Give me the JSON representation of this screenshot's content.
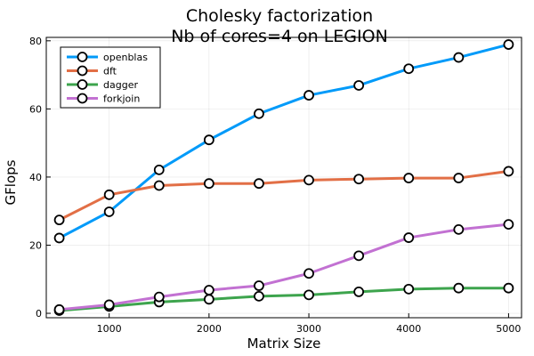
{
  "chart_data": {
    "type": "line",
    "title": [
      "Cholesky factorization",
      "Nb of cores=4 on LEGION"
    ],
    "xlabel": "Matrix Size",
    "ylabel": "GFlops",
    "x": [
      500,
      1000,
      1500,
      2000,
      2500,
      3000,
      3500,
      4000,
      4500,
      5000
    ],
    "xlim": [
      370,
      5130
    ],
    "ylim": [
      -1.3,
      81
    ],
    "xticks": [
      1000,
      2000,
      3000,
      4000,
      5000
    ],
    "yticks": [
      0,
      20,
      40,
      60,
      80
    ],
    "grid": true,
    "legend_position": "top-left",
    "series": [
      {
        "name": "openblas",
        "color": "#009af9",
        "values": [
          22.1,
          29.8,
          42.1,
          50.9,
          58.6,
          64.0,
          66.9,
          71.8,
          75.1,
          78.9
        ]
      },
      {
        "name": "dft",
        "color": "#e26f46",
        "values": [
          27.4,
          34.8,
          37.5,
          38.1,
          38.1,
          39.1,
          39.4,
          39.7,
          39.7,
          41.7
        ]
      },
      {
        "name": "dagger",
        "color": "#3da44d",
        "values": [
          0.8,
          2.0,
          3.3,
          4.1,
          5.0,
          5.4,
          6.3,
          7.1,
          7.4,
          7.4
        ]
      },
      {
        "name": "forkjoin",
        "color": "#c271d2",
        "values": [
          1.1,
          2.5,
          4.8,
          6.8,
          8.1,
          11.7,
          16.9,
          22.2,
          24.6,
          26.1
        ]
      }
    ]
  }
}
